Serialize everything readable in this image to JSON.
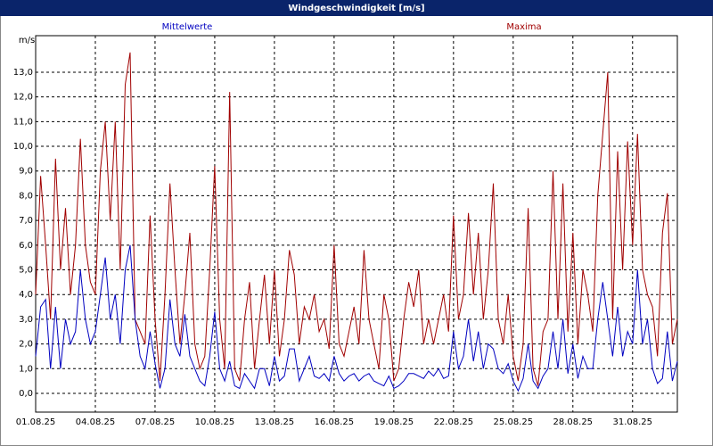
{
  "chart_data": {
    "type": "line",
    "title": "Windgeschwindigkeit [m/s]",
    "y_label": "m/s",
    "categories": [
      "01.08.25",
      null,
      null,
      null,
      null,
      null,
      null,
      null,
      null,
      null,
      null,
      null,
      "04.08.25",
      null,
      null,
      null,
      null,
      null,
      null,
      null,
      null,
      null,
      null,
      null,
      "07.08.25",
      null,
      null,
      null,
      null,
      null,
      null,
      null,
      null,
      null,
      null,
      null,
      "10.08.25",
      null,
      null,
      null,
      null,
      null,
      null,
      null,
      null,
      null,
      null,
      null,
      "13.08.25",
      null,
      null,
      null,
      null,
      null,
      null,
      null,
      null,
      null,
      null,
      null,
      "16.08.25",
      null,
      null,
      null,
      null,
      null,
      null,
      null,
      null,
      null,
      null,
      null,
      "19.08.25",
      null,
      null,
      null,
      null,
      null,
      null,
      null,
      null,
      null,
      null,
      null,
      "22.08.25",
      null,
      null,
      null,
      null,
      null,
      null,
      null,
      null,
      null,
      null,
      null,
      "25.08.25",
      null,
      null,
      null,
      null,
      null,
      null,
      null,
      null,
      null,
      null,
      null,
      "28.08.25",
      null,
      null,
      null,
      null,
      null,
      null,
      null,
      null,
      null,
      null,
      null,
      "31.08.25",
      null,
      null,
      null,
      null,
      null,
      null,
      null,
      null,
      null
    ],
    "series": [
      {
        "name": "Maxima",
        "color": "#a00000",
        "values": [
          4,
          8.8,
          6,
          3,
          9.5,
          5,
          7.5,
          4,
          6,
          10.3,
          6,
          4.5,
          4,
          9,
          11,
          7,
          11,
          5,
          12.5,
          13.8,
          3,
          2.5,
          2,
          7.2,
          3,
          0.5,
          4,
          8.5,
          5,
          2,
          4,
          6.5,
          2,
          1,
          1.5,
          5,
          9.2,
          3,
          1,
          12.2,
          1,
          0.5,
          3,
          4.5,
          1,
          3,
          4.8,
          2,
          5,
          1.5,
          3,
          5.8,
          4.8,
          2,
          3.5,
          3,
          4,
          2.5,
          3,
          1.8,
          6,
          2,
          1.5,
          2.5,
          3.5,
          2,
          5.8,
          3,
          2,
          1,
          4,
          3,
          0.5,
          1,
          3,
          4.5,
          3.5,
          5,
          2,
          3,
          2,
          3,
          4,
          2.5,
          7.2,
          3,
          4,
          7.3,
          4,
          6.5,
          3,
          5,
          8.5,
          3,
          2,
          4,
          1.5,
          0.5,
          2,
          7.5,
          1,
          0.3,
          2.5,
          3,
          9,
          3,
          8.5,
          2.5,
          6.5,
          2,
          5,
          4,
          2.5,
          8,
          10.5,
          13,
          3,
          9.8,
          5,
          10.2,
          6,
          10.5,
          5,
          4,
          3.5,
          1.5,
          6.5,
          8.1,
          2,
          3
        ]
      },
      {
        "name": "Mittelwerte",
        "color": "#0000c0",
        "values": [
          1.5,
          3.5,
          3.8,
          1,
          3.5,
          1,
          3,
          2,
          2.5,
          5,
          3,
          2,
          2.5,
          4,
          5.5,
          3,
          4,
          2,
          5,
          6,
          3,
          1.5,
          1,
          2.5,
          1.2,
          0.2,
          1,
          3.8,
          2,
          1.5,
          3.2,
          1.5,
          1,
          0.5,
          0.3,
          1.5,
          3.3,
          1,
          0.5,
          1.3,
          0.3,
          0.2,
          0.8,
          0.5,
          0.2,
          1,
          1,
          0.3,
          1.5,
          0.5,
          0.7,
          1.8,
          1.8,
          0.5,
          1,
          1.5,
          0.7,
          0.6,
          0.8,
          0.5,
          1.5,
          0.8,
          0.5,
          0.7,
          0.8,
          0.5,
          0.7,
          0.8,
          0.5,
          0.4,
          0.3,
          0.7,
          0.2,
          0.3,
          0.5,
          0.8,
          0.8,
          0.7,
          0.6,
          0.9,
          0.7,
          1,
          0.6,
          0.7,
          2.5,
          1,
          1.5,
          3,
          1.3,
          2.5,
          1,
          2,
          1.8,
          1,
          0.8,
          1.2,
          0.5,
          0.1,
          0.6,
          2,
          0.5,
          0.2,
          0.7,
          1,
          2.5,
          1,
          3,
          0.8,
          2,
          0.6,
          1.5,
          1,
          1,
          3,
          4.5,
          3,
          1.5,
          3.5,
          1.5,
          2.5,
          2,
          5,
          2,
          3,
          1,
          0.4,
          0.6,
          2.5,
          0.5,
          1.3
        ]
      }
    ],
    "ylim": [
      -0.76,
      14.48
    ],
    "yticks": [
      {
        "value": 0,
        "label": "0,0"
      },
      {
        "value": 1,
        "label": "1,0"
      },
      {
        "value": 2,
        "label": "2,0"
      },
      {
        "value": 3,
        "label": "3,0"
      },
      {
        "value": 4,
        "label": "4,0"
      },
      {
        "value": 5,
        "label": "5,0"
      },
      {
        "value": 6,
        "label": "6,0"
      },
      {
        "value": 7,
        "label": "7,0"
      },
      {
        "value": 8,
        "label": "8,0"
      },
      {
        "value": 9,
        "label": "9,0"
      },
      {
        "value": 10,
        "label": "10,0"
      },
      {
        "value": 11,
        "label": "11,0"
      },
      {
        "value": 12,
        "label": "12,0"
      },
      {
        "value": 13,
        "label": "13,0"
      }
    ],
    "grid": true
  }
}
